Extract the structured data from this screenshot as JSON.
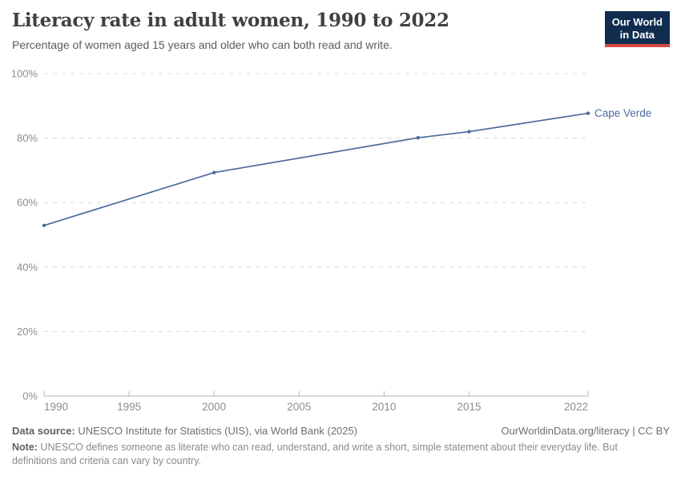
{
  "header": {
    "title": "Literacy rate in adult women, 1990 to 2022",
    "subtitle": "Percentage of women aged 15 years and older who can both read and write."
  },
  "logo": {
    "line1": "Our World",
    "line2": "in Data",
    "bg_color": "#102d50",
    "accent_color": "#d94a42"
  },
  "chart_data": {
    "type": "line",
    "title": "Literacy rate in adult women, 1990 to 2022",
    "xlabel": "",
    "ylabel": "",
    "xlim": [
      1990,
      2022
    ],
    "ylim": [
      0,
      100
    ],
    "grid": "horizontal-dashed",
    "x_ticks": [
      1990,
      1995,
      2000,
      2005,
      2010,
      2015,
      2022
    ],
    "x_tick_labels": [
      "1990",
      "1995",
      "2000",
      "2005",
      "2010",
      "2015",
      "2022"
    ],
    "y_ticks": [
      0,
      20,
      40,
      60,
      80,
      100
    ],
    "y_tick_labels": [
      "0%",
      "20%",
      "40%",
      "60%",
      "80%",
      "100%"
    ],
    "series": [
      {
        "name": "Cape Verde",
        "color": "#4c6b9e",
        "x": [
          1990,
          2000,
          2012,
          2015,
          2022
        ],
        "values": [
          52.9,
          69.3,
          80.1,
          82.0,
          87.7
        ]
      }
    ],
    "entity_label": "Cape Verde",
    "colors": {
      "grid": "#d9d9d9",
      "axis": "#b3b3b3",
      "tick_label": "#8c8c8c"
    }
  },
  "footer": {
    "data_source_label": "Data source:",
    "data_source_text": " UNESCO Institute for Statistics (UIS), via World Bank (2025)",
    "link_text": "OurWorldinData.org/literacy | CC BY",
    "note_label": "Note:",
    "note_text": " UNESCO defines someone as literate who can read, understand, and write a short, simple statement about their everyday life. But definitions and criteria can vary by country."
  }
}
